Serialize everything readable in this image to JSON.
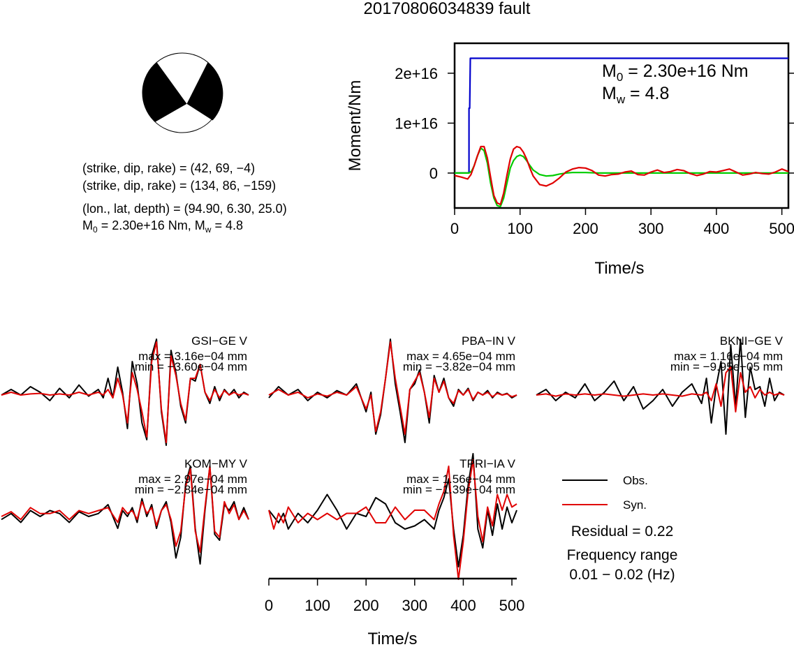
{
  "title": "20170806034839 fault",
  "mechanism": {
    "lines": [
      "(strike, dip, rake) = (42, 69, −4)",
      "(strike, dip, rake) = (134, 86, −159)",
      "(lon., lat, depth) = (94.90, 6.30, 25.0)"
    ],
    "moment_line": {
      "pre": "M",
      "sub": "0",
      "mid": " = 2.30e+16 Nm, M",
      "sub2": "w",
      "post": " = 4.8"
    }
  },
  "moment_panel": {
    "m0": {
      "pre": "M",
      "sub": "0",
      "post": " = 2.30e+16 Nm"
    },
    "mw": {
      "pre": "M",
      "sub": "w",
      "post": " = 4.8"
    }
  },
  "legend": {
    "obs_label": "Obs.",
    "syn_label": "Syn.",
    "residual": "Residual = 0.22",
    "freq_title": "Frequency range",
    "freq_value": "0.01 − 0.02 (Hz)"
  },
  "stations": [
    {
      "name": "GSI−GE V",
      "max": "max = 3.16e−04 mm",
      "min": "min = −3.60e−04 mm"
    },
    {
      "name": "PBA−IN V",
      "max": "max = 4.65e−04 mm",
      "min": "min = −3.82e−04 mm"
    },
    {
      "name": "BKNI−GE V",
      "max": "max = 1.16e−04 mm",
      "min": "min = −9.95e−05 mm"
    },
    {
      "name": "KOM−MY V",
      "max": "max = 2.97e−04 mm",
      "min": "min = −2.84e−04 mm"
    },
    {
      "name": "TPRI−IA V",
      "max": "max = 1.56e−04 mm",
      "min": "min = −1.39e−04 mm"
    }
  ],
  "colors": {
    "observed": "#000000",
    "synthetic": "#e00000",
    "moment": "#0000cc",
    "source_time": "#00cc00"
  },
  "chart_data": [
    {
      "type": "line",
      "title": "",
      "xlabel": "Time/s",
      "ylabel": "Moment/Nm",
      "xlim": [
        0,
        510
      ],
      "ylim": [
        -7000000000000000,
        26000000000000000
      ],
      "xticks": [
        "0",
        "100",
        "200",
        "300",
        "400",
        "500"
      ],
      "yticks": [
        "0",
        "1e+16",
        "2e+16"
      ],
      "xtick_values": [
        0,
        100,
        200,
        300,
        400,
        500
      ],
      "ytick_values": [
        0,
        10000000000000000,
        20000000000000000
      ],
      "grid": false,
      "series": [
        {
          "x": [
            0,
            22,
            22,
            23,
            24,
            510
          ],
          "y": [
            0,
            0,
            13000000000000000,
            13000000000000000,
            23000000000000000,
            23000000000000000
          ]
        },
        {
          "x": [
            0,
            22,
            26,
            30,
            35,
            40,
            45,
            50,
            55,
            60,
            65,
            70,
            75,
            80,
            85,
            90,
            95,
            100,
            105,
            110,
            115,
            120,
            130,
            140,
            150,
            160,
            170,
            180,
            200,
            220,
            250,
            300,
            400,
            510
          ],
          "y": [
            0,
            0,
            400000000000000,
            1500000000000000,
            3500000000000000,
            5000000000000000,
            4500000000000000,
            2000000000000000,
            -2000000000000000,
            -5000000000000000,
            -6500000000000000,
            -6700000000000000,
            -5000000000000000,
            -2000000000000000,
            1000000000000000,
            2500000000000000,
            3300000000000000,
            3600000000000000,
            3300000000000000,
            2500000000000000,
            1500000000000000,
            600000000000000,
            -300000000000000,
            -600000000000000,
            -500000000000000,
            -200000000000000,
            0,
            100000000000000,
            100000000000000,
            0,
            0,
            0,
            0,
            0
          ]
        },
        {
          "x": [
            0,
            10,
            20,
            25,
            30,
            35,
            40,
            45,
            50,
            55,
            60,
            65,
            70,
            75,
            80,
            85,
            90,
            95,
            100,
            105,
            110,
            115,
            120,
            130,
            140,
            150,
            160,
            170,
            180,
            190,
            200,
            210,
            220,
            230,
            240,
            250,
            260,
            270,
            280,
            290,
            300,
            310,
            320,
            330,
            340,
            350,
            360,
            370,
            380,
            390,
            400,
            410,
            420,
            430,
            440,
            450,
            460,
            470,
            480,
            490,
            500,
            510
          ],
          "y": [
            -500000000000000,
            -800000000000000,
            -1200000000000000,
            -300000000000000,
            1500000000000000,
            3500000000000000,
            5300000000000000,
            5300000000000000,
            3000000000000000,
            -800000000000000,
            -4500000000000000,
            -6000000000000000,
            -6300000000000000,
            -4000000000000000,
            -400000000000000,
            2800000000000000,
            4800000000000000,
            5300000000000000,
            5100000000000000,
            4200000000000000,
            2800000000000000,
            1000000000000000,
            -600000000000000,
            -2300000000000000,
            -2600000000000000,
            -2000000000000000,
            -1000000000000000,
            200000000000000,
            800000000000000,
            1100000000000000,
            1000000000000000,
            500000000000000,
            -400000000000000,
            -600000000000000,
            -300000000000000,
            -200000000000000,
            200000000000000,
            400000000000000,
            -300000000000000,
            -400000000000000,
            200000000000000,
            600000000000000,
            100000000000000,
            300000000000000,
            700000000000000,
            500000000000000,
            -100000000000000,
            -500000000000000,
            -200000000000000,
            300000000000000,
            200000000000000,
            500000000000000,
            800000000000000,
            200000000000000,
            -400000000000000,
            -200000000000000,
            100000000000000,
            -100000000000000,
            -200000000000000,
            200000000000000,
            800000000000000,
            300000000000000
          ]
        }
      ]
    },
    {
      "type": "line",
      "title": "",
      "xlabel": "Time/s",
      "ylabel": "",
      "xlim": [
        0,
        510
      ],
      "ylim": [
        -1,
        1
      ],
      "xticks": [
        "0",
        "100",
        "200",
        "300",
        "400",
        "500"
      ],
      "xtick_values": [
        0,
        100,
        200,
        300,
        400,
        500
      ],
      "grid": false,
      "traces": [
        {
          "station": "GSI−GE V",
          "x": [
            0,
            20,
            40,
            60,
            80,
            100,
            120,
            140,
            160,
            180,
            200,
            210,
            220,
            230,
            240,
            250,
            260,
            265,
            270,
            280,
            290,
            300,
            310,
            320,
            330,
            340,
            350,
            360,
            370,
            380,
            390,
            400,
            410,
            420,
            430,
            440,
            450,
            460,
            470,
            480,
            490,
            500,
            510
          ],
          "obs": [
            0.0,
            0.1,
            0.0,
            0.15,
            0.05,
            -0.1,
            0.12,
            -0.05,
            0.18,
            -0.02,
            0.1,
            -0.05,
            0.3,
            -0.05,
            0.5,
            0.05,
            -0.6,
            0.0,
            0.6,
            0.2,
            -0.5,
            -0.8,
            0.7,
            1.0,
            -0.3,
            -0.9,
            0.8,
            0.4,
            -0.2,
            -0.5,
            0.3,
            0.25,
            0.55,
            0.05,
            -0.15,
            0.15,
            -0.1,
            0.1,
            0.0,
            0.1,
            -0.05,
            0.05,
            0.0
          ],
          "syn": [
            0.0,
            0.05,
            0.0,
            0.02,
            0.03,
            0.0,
            0.02,
            0.0,
            0.05,
            0.0,
            0.05,
            0.0,
            0.1,
            -0.05,
            0.3,
            0.0,
            -0.5,
            0.0,
            0.4,
            0.1,
            -0.3,
            -0.75,
            0.6,
            0.95,
            -0.25,
            -0.85,
            0.7,
            0.35,
            -0.15,
            -0.45,
            0.3,
            0.3,
            0.55,
            0.05,
            -0.1,
            0.1,
            -0.05,
            0.08,
            0.0,
            0.05,
            0.0,
            0.03,
            0.0
          ]
        },
        {
          "station": "PBA−IN V",
          "x": [
            0,
            20,
            40,
            60,
            80,
            100,
            120,
            140,
            160,
            180,
            200,
            210,
            220,
            230,
            240,
            250,
            260,
            270,
            280,
            290,
            300,
            310,
            320,
            330,
            340,
            350,
            360,
            370,
            380,
            390,
            400,
            410,
            420,
            430,
            440,
            450,
            460,
            470,
            480,
            490,
            500,
            510
          ],
          "obs": [
            -0.05,
            0.15,
            0.0,
            0.1,
            -0.1,
            0.05,
            -0.05,
            0.08,
            0.0,
            0.2,
            -0.3,
            0.05,
            -0.7,
            -0.35,
            0.3,
            1.0,
            0.2,
            -0.3,
            -0.85,
            0.1,
            0.2,
            0.45,
            0.05,
            -0.5,
            0.35,
            0.05,
            0.3,
            -0.05,
            -0.2,
            0.1,
            0.0,
            0.12,
            -0.1,
            0.05,
            0.0,
            0.08,
            -0.05,
            0.05,
            0.0,
            0.03,
            -0.05,
            0.0
          ],
          "syn": [
            0.0,
            0.1,
            0.0,
            0.05,
            -0.05,
            0.02,
            -0.02,
            0.05,
            0.0,
            0.15,
            -0.25,
            0.0,
            -0.65,
            -0.3,
            0.3,
            0.95,
            0.3,
            -0.2,
            -0.7,
            0.1,
            0.25,
            0.4,
            0.05,
            -0.4,
            0.3,
            0.05,
            0.25,
            -0.05,
            -0.15,
            0.08,
            0.0,
            0.1,
            -0.08,
            0.05,
            0.0,
            0.05,
            -0.03,
            0.03,
            0.0,
            0.02,
            -0.03,
            0.0
          ]
        },
        {
          "station": "BKNI−GE V",
          "x": [
            0,
            20,
            40,
            60,
            80,
            100,
            120,
            140,
            160,
            180,
            200,
            220,
            240,
            260,
            280,
            300,
            320,
            340,
            350,
            360,
            370,
            380,
            390,
            400,
            410,
            420,
            430,
            440,
            450,
            460,
            470,
            480,
            490,
            500,
            510
          ],
          "obs": [
            0.0,
            0.1,
            -0.1,
            0.05,
            -0.05,
            0.2,
            -0.1,
            0.05,
            0.25,
            -0.1,
            0.15,
            -0.25,
            -0.1,
            0.1,
            -0.2,
            0.05,
            0.2,
            -0.15,
            0.3,
            -0.5,
            0.15,
            0.6,
            -0.7,
            0.9,
            -0.2,
            1.0,
            -0.4,
            0.5,
            0.1,
            0.15,
            -0.2,
            0.3,
            -0.1,
            0.05,
            0.0
          ],
          "syn": [
            0.0,
            0.02,
            -0.02,
            0.02,
            0.0,
            0.02,
            0.0,
            0.02,
            0.0,
            -0.02,
            0.0,
            0.02,
            0.0,
            0.02,
            0.0,
            -0.02,
            0.02,
            0.0,
            0.05,
            -0.1,
            0.2,
            -0.2,
            0.4,
            0.5,
            -0.3,
            0.4,
            0.05,
            0.15,
            -0.05,
            0.1,
            0.0,
            0.05,
            0.0,
            0.03,
            0.0
          ]
        },
        {
          "station": "KOM−MY V",
          "x": [
            0,
            20,
            40,
            60,
            80,
            100,
            120,
            140,
            160,
            180,
            200,
            220,
            240,
            250,
            260,
            270,
            280,
            290,
            300,
            310,
            320,
            330,
            340,
            350,
            360,
            370,
            380,
            390,
            400,
            410,
            420,
            430,
            440,
            450,
            460,
            470,
            480,
            490,
            500,
            510
          ],
          "obs": [
            -0.05,
            0.05,
            -0.1,
            0.1,
            0.0,
            0.1,
            0.05,
            -0.1,
            0.08,
            0.0,
            0.05,
            0.2,
            -0.2,
            0.1,
            0.0,
            0.15,
            -0.1,
            0.3,
            0.0,
            0.2,
            -0.2,
            0.1,
            0.25,
            -0.1,
            -0.7,
            -0.35,
            0.55,
            0.85,
            -0.2,
            -0.8,
            0.1,
            0.85,
            -0.3,
            -0.4,
            0.2,
            0.1,
            0.25,
            -0.05,
            0.15,
            -0.05
          ],
          "syn": [
            0.0,
            0.08,
            -0.05,
            0.15,
            0.05,
            0.05,
            0.1,
            -0.05,
            0.1,
            0.05,
            0.1,
            0.15,
            -0.1,
            0.15,
            0.05,
            0.1,
            -0.05,
            0.25,
            0.05,
            0.15,
            -0.15,
            0.1,
            0.2,
            -0.05,
            -0.5,
            -0.25,
            0.5,
            0.8,
            -0.25,
            -0.6,
            0.15,
            0.85,
            -0.25,
            -0.35,
            0.25,
            0.05,
            0.2,
            -0.05,
            0.1,
            -0.05
          ]
        },
        {
          "station": "TPRI−IA V",
          "x": [
            0,
            10,
            20,
            30,
            40,
            60,
            80,
            100,
            120,
            140,
            160,
            180,
            200,
            220,
            240,
            260,
            280,
            300,
            320,
            340,
            350,
            360,
            370,
            380,
            390,
            400,
            410,
            420,
            430,
            440,
            450,
            460,
            470,
            480,
            490,
            500,
            510
          ],
          "obs": [
            0.1,
            0.0,
            -0.1,
            0.05,
            -0.2,
            0.05,
            -0.1,
            0.1,
            0.35,
            0.1,
            -0.2,
            0.05,
            0.0,
            0.3,
            0.2,
            -0.1,
            -0.2,
            -0.15,
            -0.05,
            -0.2,
            0.1,
            0.3,
            0.6,
            -0.2,
            -0.8,
            -0.3,
            0.5,
            1.0,
            -0.2,
            -0.5,
            0.1,
            -0.3,
            0.2,
            -0.2,
            0.15,
            -0.1,
            0.1
          ],
          "syn": [
            0.1,
            -0.2,
            0.05,
            -0.1,
            0.15,
            -0.1,
            0.05,
            -0.05,
            0.05,
            -0.05,
            0.05,
            0.05,
            0.15,
            -0.1,
            -0.1,
            0.15,
            -0.05,
            0.1,
            0.1,
            -0.05,
            0.2,
            0.4,
            0.8,
            -0.3,
            -1.0,
            -0.4,
            0.4,
            0.9,
            0.0,
            -0.4,
            0.15,
            -0.15,
            0.35,
            0.1,
            0.35,
            0.15,
            0.2
          ]
        }
      ]
    }
  ]
}
